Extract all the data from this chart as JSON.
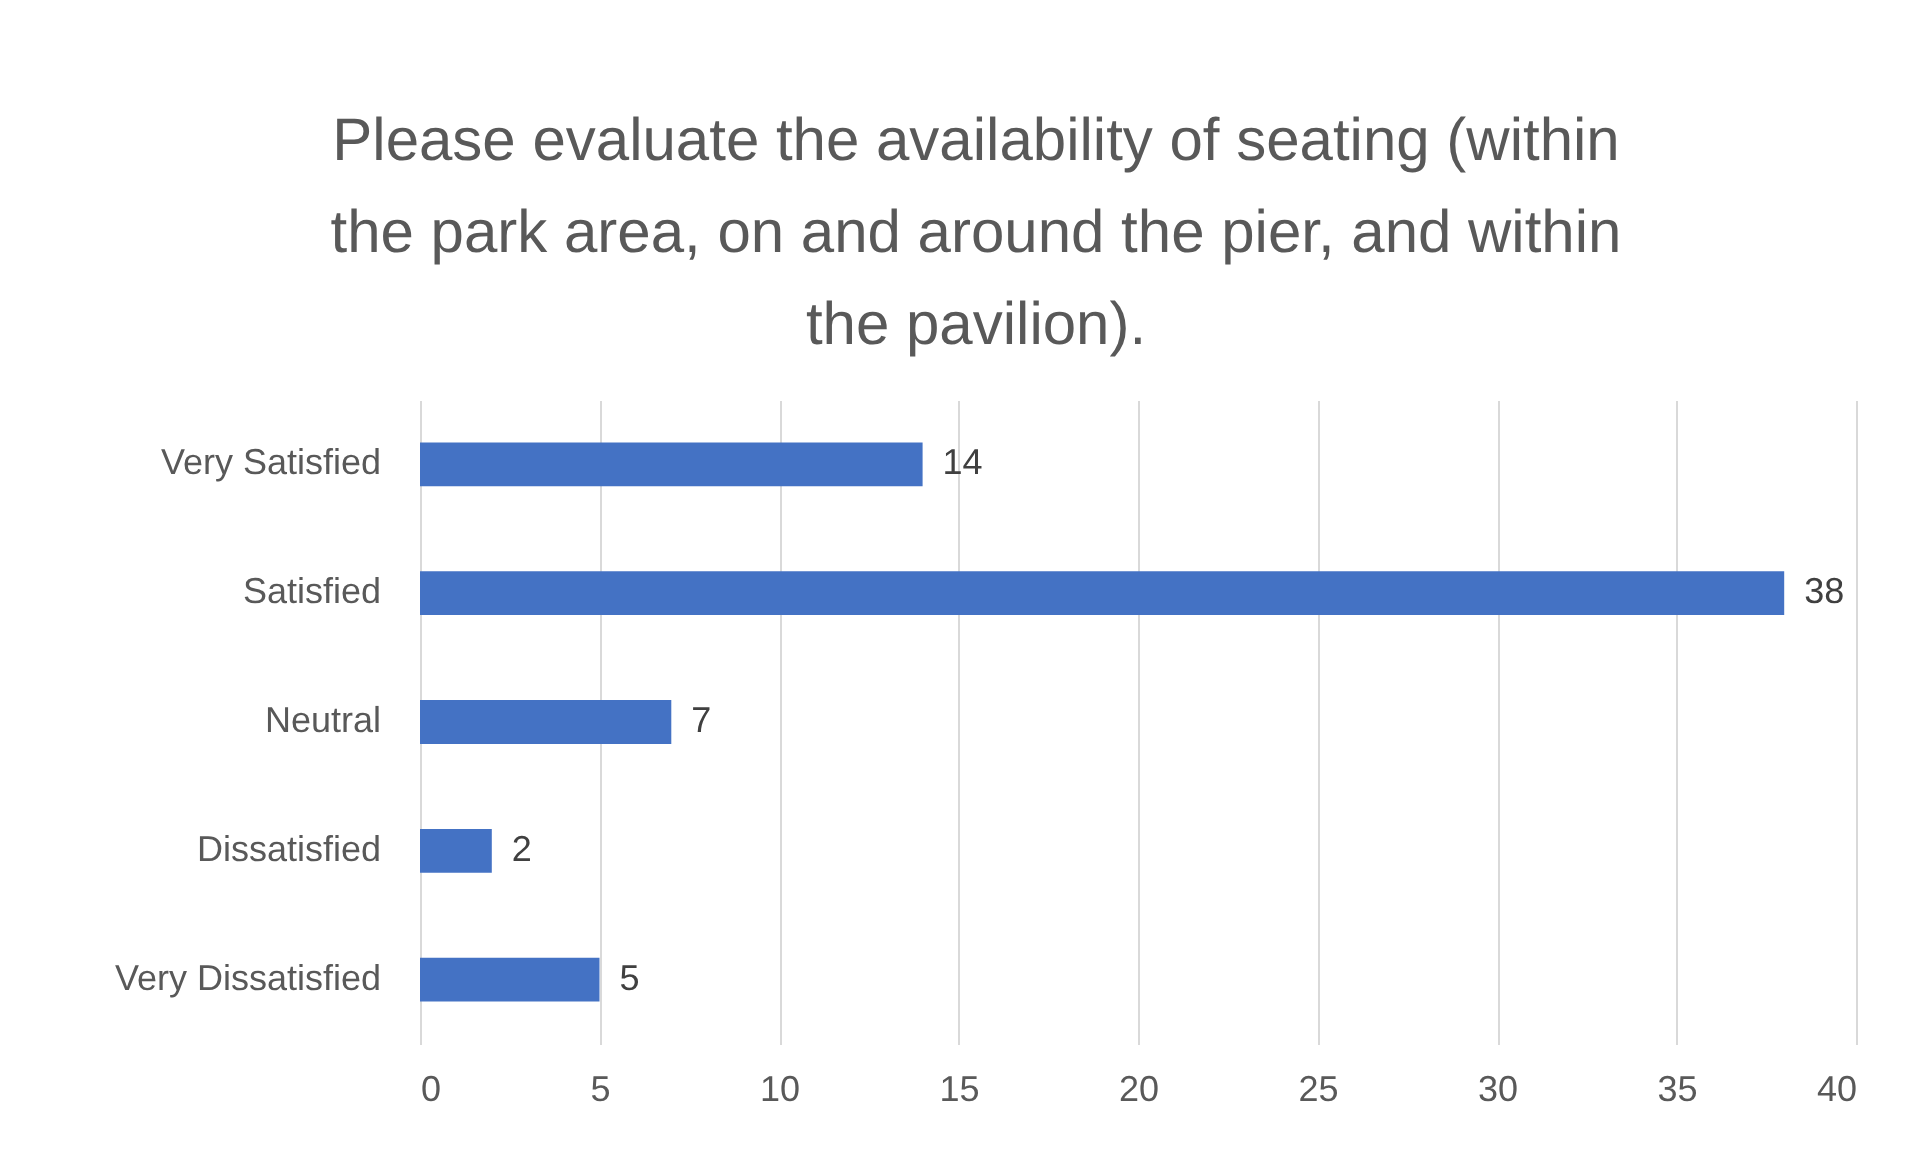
{
  "chart_data": {
    "type": "bar",
    "orientation": "horizontal",
    "title": "Please evaluate the availability of seating (within the park area, on and around the pier, and within the pavilion).",
    "categories": [
      "Very Satisfied",
      "Satisfied",
      "Neutral",
      "Dissatisfied",
      "Very Dissatisfied"
    ],
    "values": [
      14,
      38,
      7,
      2,
      5
    ],
    "color": "#4472c4",
    "xlim": [
      0,
      40
    ],
    "xticks": [
      0,
      5,
      10,
      15,
      20,
      25,
      30,
      35,
      40
    ],
    "grid": "x",
    "data_labels": true
  }
}
